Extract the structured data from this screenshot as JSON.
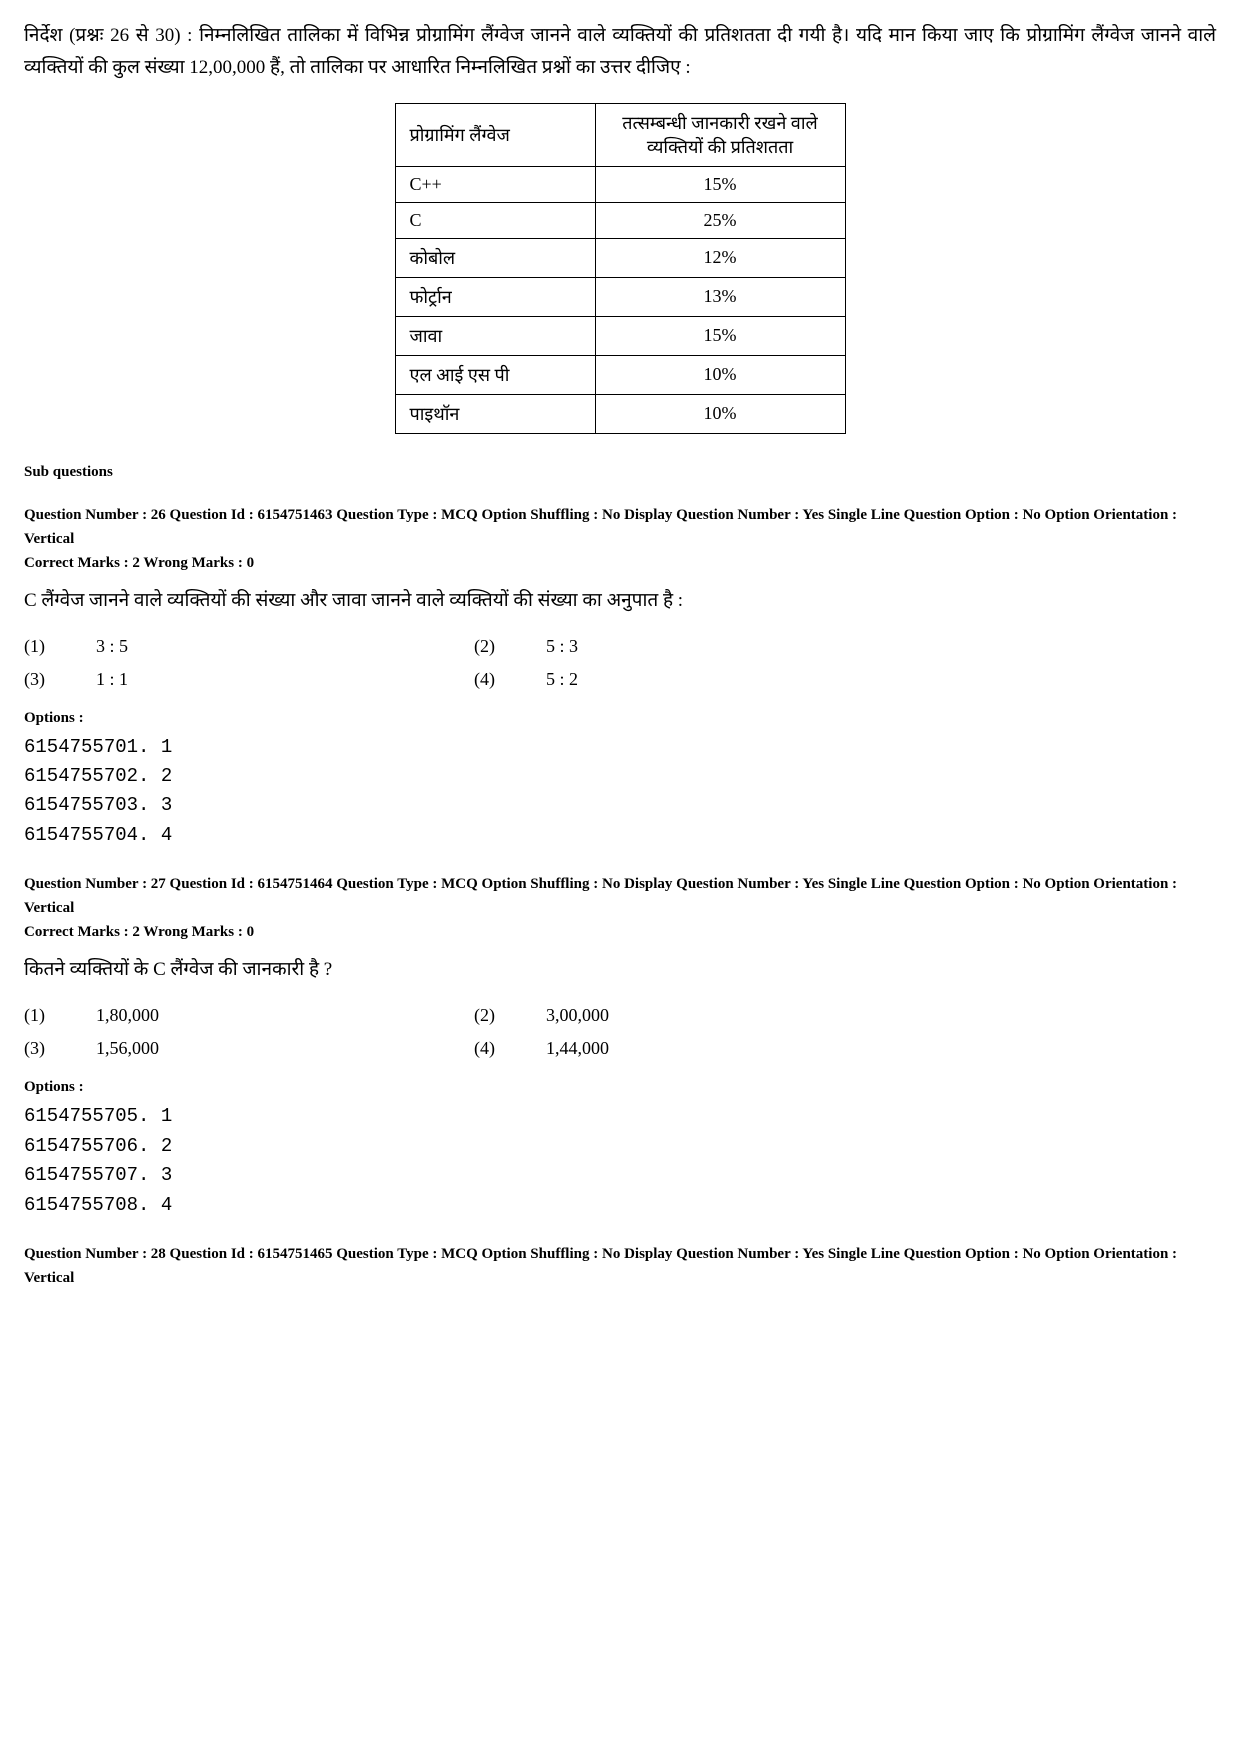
{
  "instructions": "निर्देश (प्रश्नः 26 से 30) : निम्नलिखित तालिका में विभिन्न प्रोग्रामिंग लैंग्वेज जानने वाले व्यक्तियों की प्रतिशतता दी गयी है। यदि मान किया जाए कि प्रोग्रामिंग लैंग्वेज जानने वाले व्यक्तियों की कुल संख्या 12,00,000 हैं, तो तालिका पर आधारित निम्नलिखित प्रश्नों का उत्तर दीजिए :",
  "table": {
    "headers": {
      "lang": "प्रोग्रामिंग लैंग्वेज",
      "pct": "तत्सम्बन्धी जानकारी रखने वाले व्यक्तियों की प्रतिशतता"
    },
    "rows": [
      {
        "lang": "C++",
        "pct": "15%"
      },
      {
        "lang": "C",
        "pct": "25%"
      },
      {
        "lang": "कोबोल",
        "pct": "12%"
      },
      {
        "lang": "फोर्ट्रान",
        "pct": "13%"
      },
      {
        "lang": "जावा",
        "pct": "15%"
      },
      {
        "lang": "एल आई एस पी",
        "pct": "10%"
      },
      {
        "lang": "पाइथॉन",
        "pct": "10%"
      }
    ]
  },
  "sub_questions_label": "Sub questions",
  "options_label": "Options :",
  "q26": {
    "meta": "Question Number : 26  Question Id : 6154751463  Question Type : MCQ  Option Shuffling : No  Display Question Number : Yes Single Line Question Option : No  Option Orientation : Vertical",
    "marks": "Correct Marks : 2  Wrong Marks : 0",
    "text": "C लैंग्वेज जानने वाले व्यक्तियों की संख्या और जावा जानने वाले व्यक्तियों की संख्या का अनुपात है :",
    "opts": [
      {
        "n": "(1)",
        "v": "3 : 5"
      },
      {
        "n": "(2)",
        "v": "5 : 3"
      },
      {
        "n": "(3)",
        "v": "1 : 1"
      },
      {
        "n": "(4)",
        "v": "5 : 2"
      }
    ],
    "options_list": [
      "6154755701. 1",
      "6154755702. 2",
      "6154755703. 3",
      "6154755704. 4"
    ]
  },
  "q27": {
    "meta": "Question Number : 27  Question Id : 6154751464  Question Type : MCQ  Option Shuffling : No  Display Question Number : Yes Single Line Question Option : No  Option Orientation : Vertical",
    "marks": "Correct Marks : 2  Wrong Marks : 0",
    "text": "कितने व्यक्तियों के C लैंग्वेज की जानकारी है ?",
    "opts": [
      {
        "n": "(1)",
        "v": "1,80,000"
      },
      {
        "n": "(2)",
        "v": "3,00,000"
      },
      {
        "n": "(3)",
        "v": "1,56,000"
      },
      {
        "n": "(4)",
        "v": "1,44,000"
      }
    ],
    "options_list": [
      "6154755705. 1",
      "6154755706. 2",
      "6154755707. 3",
      "6154755708. 4"
    ]
  },
  "q28": {
    "meta": "Question Number : 28  Question Id : 6154751465  Question Type : MCQ  Option Shuffling : No  Display Question Number : Yes Single Line Question Option : No  Option Orientation : Vertical"
  }
}
